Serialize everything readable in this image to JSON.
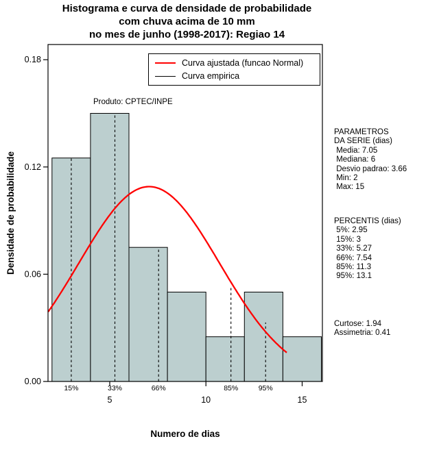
{
  "title": {
    "line1": "Histograma e curva de densidade de probabilidade",
    "line2": "com chuva acima de 10 mm",
    "line3": "no mes de junho (1998-2017): Regiao 14"
  },
  "chart_data": {
    "type": "bar",
    "subtype": "histogram-with-density-curve",
    "title": "Histograma e curva de densidade de probabilidade com chuva acima de 10 mm no mes de junho (1998-2017): Regiao 14",
    "xlabel": "Numero de dias",
    "ylabel": "Densidade de probabilidade",
    "xlim": [
      1.793,
      16.053
    ],
    "ylim": [
      0,
      0.1885
    ],
    "grid": false,
    "legend_position": "top-right",
    "x_ticks": [
      {
        "v": 5,
        "label": "5"
      },
      {
        "v": 10,
        "label": "10"
      },
      {
        "v": 15,
        "label": "15"
      }
    ],
    "y_ticks": [
      {
        "v": 0.0,
        "label": "0.00"
      },
      {
        "v": 0.06,
        "label": "0.06"
      },
      {
        "v": 0.12,
        "label": "0.12"
      },
      {
        "v": 0.18,
        "label": "0.18"
      }
    ],
    "histogram": {
      "bin_start": 2,
      "bin_width": 2,
      "bin_edges": [
        2,
        4,
        6,
        8,
        10,
        12,
        14,
        16
      ],
      "densities": [
        0.125,
        0.15,
        0.075,
        0.05,
        0.025,
        0.05,
        0.025
      ],
      "fill": "#bccfcf",
      "stroke": "#000000"
    },
    "normal_curve": {
      "mean": 7.05,
      "sd": 3.66,
      "x_start": 1.8,
      "x_end": 14.27,
      "color": "#ff0000"
    },
    "percentile_lines": [
      {
        "label": "15%",
        "x": 3.0,
        "height": 0.125
      },
      {
        "label": "33%",
        "x": 5.27,
        "height": 0.15
      },
      {
        "label": "66%",
        "x": 7.54,
        "height": 0.075
      },
      {
        "label": "85%",
        "x": 11.3,
        "height": 0.053
      },
      {
        "label": "95%",
        "x": 13.1,
        "height": 0.033
      }
    ],
    "legend": [
      {
        "label": "Curva ajustada (funcao Normal)",
        "color": "#ff0000"
      },
      {
        "label": "Curva empirica",
        "color": "#000000"
      }
    ],
    "annotation": "Produto: CPTEC/INPE"
  },
  "side_panel": {
    "params_title1": "PARAMETROS",
    "params_title2": "DA SERIE (dias)",
    "params": [
      " Media: 7.05",
      " Mediana: 6",
      " Desvio padrao: 3.66",
      " Min: 2",
      " Max: 15"
    ],
    "percentis_title": "PERCENTIS (dias)",
    "percentis": [
      " 5%: 2.95",
      " 15%: 3",
      " 33%: 5.27",
      " 66%: 7.54",
      " 85%: 11.3",
      " 95%: 13.1"
    ],
    "curtose": "Curtose: 1.94",
    "assimetria": "Assimetria: 0.41"
  }
}
